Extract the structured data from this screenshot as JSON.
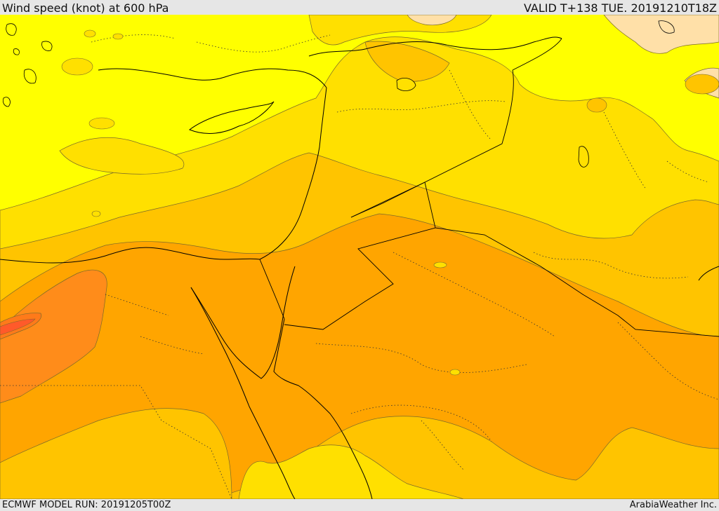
{
  "header": {
    "title": "Wind speed (knot) at 600 hPa",
    "valid_time": "VALID T+138 TUE. 20191210T18Z"
  },
  "footer": {
    "model_run": "ECMWF MODEL RUN: 20191205T00Z",
    "credit": "ArabiaWeather Inc."
  },
  "colors": {
    "land_sea": "#ffff00",
    "band_2": "#ffe000",
    "band_3": "#ffc400",
    "band_4": "#ffa500",
    "band_5": "#ff8c1a",
    "band_6": "#ff7a1a",
    "band_7": "#ff5a2a",
    "light_cream": "#ffe0a8",
    "border": "#000000"
  }
}
